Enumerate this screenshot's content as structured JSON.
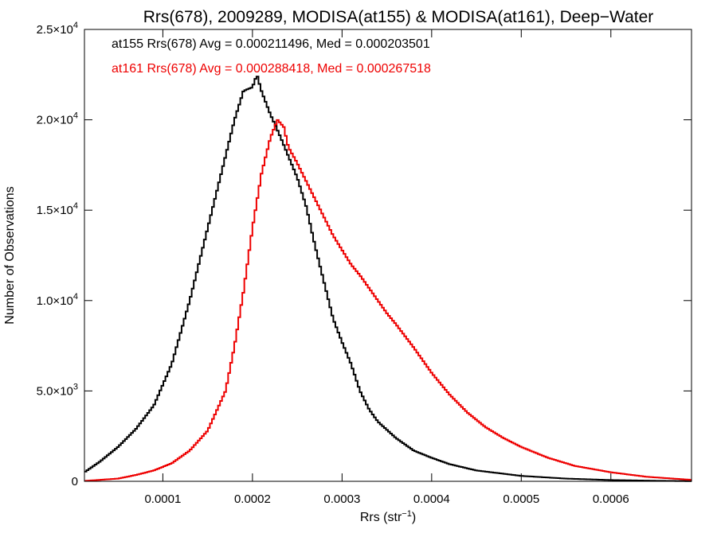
{
  "chart_data": {
    "type": "histogram-step",
    "title": "Rrs(678), 2009289, MODISA(at155) & MODISA(at161), Deep−Water",
    "xlabel": "Rrs (str",
    "xlabel_sup": "−1",
    "xlabel_close": ")",
    "ylabel": "Number of Observations",
    "xlim": [
      1.25e-05,
      0.00069
    ],
    "ylim": [
      0,
      25000
    ],
    "x_ticks": [
      {
        "value": 0.0001,
        "label": "0.0001"
      },
      {
        "value": 0.0002,
        "label": "0.0002"
      },
      {
        "value": 0.0003,
        "label": "0.0003"
      },
      {
        "value": 0.0004,
        "label": "0.0004"
      },
      {
        "value": 0.0005,
        "label": "0.0005"
      },
      {
        "value": 0.0006,
        "label": "0.0006"
      }
    ],
    "y_ticks": [
      {
        "value": 0,
        "mant": "0",
        "exp": ""
      },
      {
        "value": 5000,
        "mant": "5.0×10",
        "exp": "3"
      },
      {
        "value": 10000,
        "mant": "1.0×10",
        "exp": "4"
      },
      {
        "value": 15000,
        "mant": "1.5×10",
        "exp": "4"
      },
      {
        "value": 20000,
        "mant": "2.0×10",
        "exp": "4"
      },
      {
        "value": 25000,
        "mant": "2.5×10",
        "exp": "4"
      }
    ],
    "grid": false,
    "legend_position": "top-left",
    "series": [
      {
        "name": "at155",
        "color": "#000000",
        "label": "at155 Rrs(678) Avg = 0.000211496, Med = 0.000203501",
        "points": [
          [
            1.25e-05,
            500
          ],
          [
            3e-05,
            1100
          ],
          [
            5e-05,
            1900
          ],
          [
            7e-05,
            2900
          ],
          [
            9e-05,
            4200
          ],
          [
            0.00011,
            6500
          ],
          [
            0.00013,
            10000
          ],
          [
            0.00015,
            14000
          ],
          [
            0.00017,
            18000
          ],
          [
            0.00018,
            20000
          ],
          [
            0.00019,
            21600
          ],
          [
            0.0002,
            21800
          ],
          [
            0.000205,
            22500
          ],
          [
            0.00021,
            21600
          ],
          [
            0.00022,
            20300
          ],
          [
            0.00023,
            19200
          ],
          [
            0.00024,
            18000
          ],
          [
            0.00025,
            16800
          ],
          [
            0.00026,
            15200
          ],
          [
            0.00027,
            13000
          ],
          [
            0.00028,
            11000
          ],
          [
            0.00029,
            9000
          ],
          [
            0.0003,
            7700
          ],
          [
            0.00031,
            6500
          ],
          [
            0.00032,
            5000
          ],
          [
            0.00033,
            4000
          ],
          [
            0.00034,
            3300
          ],
          [
            0.00036,
            2400
          ],
          [
            0.00038,
            1700
          ],
          [
            0.0004,
            1300
          ],
          [
            0.00042,
            950
          ],
          [
            0.00045,
            600
          ],
          [
            0.0005,
            300
          ],
          [
            0.00055,
            150
          ],
          [
            0.0006,
            70
          ],
          [
            0.00065,
            30
          ],
          [
            0.00069,
            10
          ]
        ]
      },
      {
        "name": "at161",
        "color": "#ee0000",
        "label": "at161 Rrs(678) Avg = 0.000288418, Med = 0.000267518",
        "points": [
          [
            1.25e-05,
            20
          ],
          [
            5e-05,
            150
          ],
          [
            7e-05,
            350
          ],
          [
            9e-05,
            600
          ],
          [
            0.00011,
            1000
          ],
          [
            0.00013,
            1700
          ],
          [
            0.00015,
            2800
          ],
          [
            0.00017,
            5000
          ],
          [
            0.00018,
            7500
          ],
          [
            0.00019,
            10500
          ],
          [
            0.0002,
            14000
          ],
          [
            0.00021,
            17000
          ],
          [
            0.00022,
            19000
          ],
          [
            0.000228,
            20000
          ],
          [
            0.000235,
            19600
          ],
          [
            0.00024,
            18500
          ],
          [
            0.00025,
            17600
          ],
          [
            0.00026,
            16600
          ],
          [
            0.00027,
            15600
          ],
          [
            0.00028,
            14600
          ],
          [
            0.00029,
            13600
          ],
          [
            0.0003,
            12800
          ],
          [
            0.00031,
            12000
          ],
          [
            0.00032,
            11400
          ],
          [
            0.00033,
            10700
          ],
          [
            0.00034,
            10000
          ],
          [
            0.00035,
            9300
          ],
          [
            0.00036,
            8700
          ],
          [
            0.00038,
            7400
          ],
          [
            0.0004,
            6000
          ],
          [
            0.00042,
            4800
          ],
          [
            0.00044,
            3800
          ],
          [
            0.00046,
            3000
          ],
          [
            0.00048,
            2400
          ],
          [
            0.0005,
            1900
          ],
          [
            0.00053,
            1300
          ],
          [
            0.00056,
            850
          ],
          [
            0.0006,
            500
          ],
          [
            0.00064,
            250
          ],
          [
            0.00069,
            80
          ]
        ]
      }
    ]
  }
}
